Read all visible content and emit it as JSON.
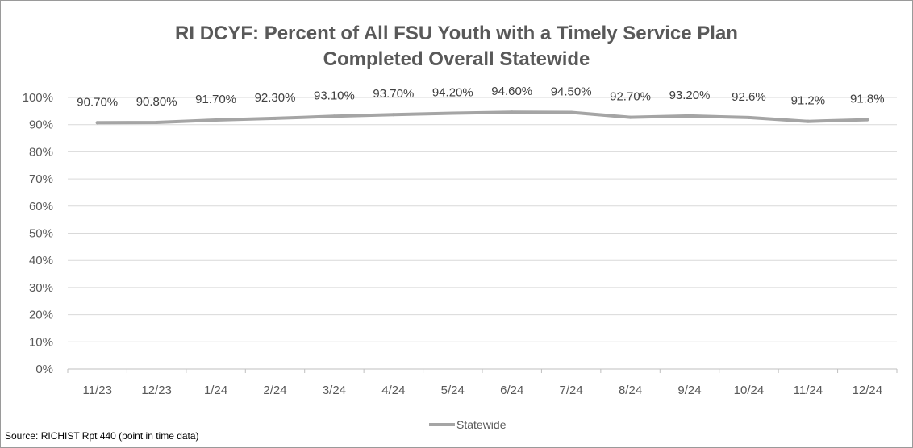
{
  "title_lines": [
    "RI DCYF: Percent of All FSU Youth with a Timely Service Plan",
    "Completed Overall Statewide"
  ],
  "source": "Source: RICHIST Rpt 440 (point in time data)",
  "chart_data": {
    "type": "line",
    "title": "RI DCYF: Percent of All FSU Youth with a Timely Service Plan Completed Overall Statewide",
    "xlabel": "",
    "ylabel": "",
    "categories": [
      "11/23",
      "12/23",
      "1/24",
      "2/24",
      "3/24",
      "4/24",
      "5/24",
      "6/24",
      "7/24",
      "8/24",
      "9/24",
      "10/24",
      "11/24",
      "12/24"
    ],
    "series": [
      {
        "name": "Statewide",
        "color": "#a5a5a5",
        "values": [
          90.7,
          90.8,
          91.7,
          92.3,
          93.1,
          93.7,
          94.2,
          94.6,
          94.5,
          92.7,
          93.2,
          92.6,
          91.2,
          91.8
        ],
        "data_labels": [
          "90.70%",
          "90.80%",
          "91.70%",
          "92.30%",
          "93.10%",
          "93.70%",
          "94.20%",
          "94.60%",
          "94.50%",
          "92.70%",
          "93.20%",
          "92.6%",
          "91.2%",
          "91.8%"
        ]
      }
    ],
    "ylim": [
      0,
      100
    ],
    "ytick_values": [
      0,
      10,
      20,
      30,
      40,
      50,
      60,
      70,
      80,
      90,
      100
    ],
    "ytick_labels": [
      "0%",
      "10%",
      "20%",
      "30%",
      "40%",
      "50%",
      "60%",
      "70%",
      "80%",
      "90%",
      "100%"
    ],
    "grid": true,
    "legend_position": "bottom"
  }
}
